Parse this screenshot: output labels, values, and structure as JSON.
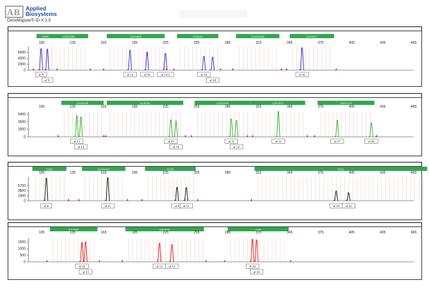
{
  "header": {
    "brand_line1": "Applied",
    "brand_line2": "Biosystems",
    "app_title": "GeneMapper® ID-X 1.5",
    "logo_icon": "ab-logo-icon"
  },
  "colors": {
    "blue": "#2b2ec4",
    "green": "#2db52d",
    "black": "#111111",
    "red": "#e01a1a",
    "marker_fill": "#2eaa4a",
    "bin_line": "#e9a4a4",
    "allele_box": "#5a5a5a"
  },
  "panels": [
    {
      "dye": "blue",
      "ymax": 8000,
      "yticks": [
        0,
        2000,
        4000,
        6000
      ],
      "x_ticks": [
        "105",
        "135",
        "165",
        "195",
        "225",
        "255",
        "285",
        "315",
        "345",
        "375",
        "405",
        "435",
        "465"
      ],
      "markers": [
        {
          "name": "AMEL",
          "start": 100,
          "end": 118
        },
        {
          "name": "D3S1358",
          "start": 112,
          "end": 150
        },
        {
          "name": "D1S1656",
          "start": 168,
          "end": 224
        },
        {
          "name": "D2S441",
          "start": 236,
          "end": 276
        },
        {
          "name": "D10S1248",
          "start": 293,
          "end": 335
        },
        {
          "name": "D13S317",
          "start": 345,
          "end": 388
        }
      ],
      "peaks": [
        {
          "x": 104.5,
          "h": 7200
        },
        {
          "x": 110.5,
          "h": 7000
        },
        {
          "x": 190.5,
          "h": 6600
        },
        {
          "x": 207.0,
          "h": 6000
        },
        {
          "x": 224.8,
          "h": 5600
        },
        {
          "x": 262.0,
          "h": 4600
        },
        {
          "x": 270.5,
          "h": 4300
        },
        {
          "x": 357.0,
          "h": 7500
        }
      ],
      "alleles": [
        {
          "label": "X",
          "x": 104.5,
          "row": 0
        },
        {
          "label": "Y",
          "x": 110.5,
          "row": 1
        },
        {
          "label": "12",
          "x": 190.5,
          "row": 0
        },
        {
          "label": "10",
          "x": 207.0,
          "row": 0
        },
        {
          "label": "13.2",
          "x": 224.8,
          "row": 0
        },
        {
          "label": "16",
          "x": 262.0,
          "row": 0
        },
        {
          "label": "18",
          "x": 270.5,
          "row": 1
        },
        {
          "label": "16",
          "x": 357.0,
          "row": 0
        }
      ]
    },
    {
      "dye": "green",
      "ymax": 6000,
      "yticks": [
        0,
        1800,
        3600,
        5400
      ],
      "x_ticks": [
        "105",
        "135",
        "165",
        "195",
        "225",
        "255",
        "285",
        "315",
        "345",
        "375",
        "405",
        "435",
        "465"
      ],
      "markers": [
        {
          "name": "D16S539",
          "start": 124,
          "end": 165
        },
        {
          "name": "D18S51",
          "start": 168,
          "end": 242
        },
        {
          "name": "D2S1338",
          "start": 253,
          "end": 307
        },
        {
          "name": "CSF1PO",
          "start": 307,
          "end": 360
        },
        {
          "name": "D8S1179",
          "start": 372,
          "end": 427
        }
      ],
      "peaks": [
        {
          "x": 139.0,
          "h": 5000
        },
        {
          "x": 143.0,
          "h": 4700
        },
        {
          "x": 230.0,
          "h": 4000
        },
        {
          "x": 235.0,
          "h": 3700
        },
        {
          "x": 288.5,
          "h": 4200
        },
        {
          "x": 293.5,
          "h": 3900
        },
        {
          "x": 334.0,
          "h": 6000
        },
        {
          "x": 391.0,
          "h": 3900
        },
        {
          "x": 424.0,
          "h": 3300
        }
      ],
      "alleles": [
        {
          "label": "13",
          "x": 139.0,
          "row": 0
        },
        {
          "label": "14",
          "x": 143.0,
          "row": 1
        },
        {
          "label": "15",
          "x": 230.0,
          "row": 0
        },
        {
          "label": "16",
          "x": 235.0,
          "row": 1
        },
        {
          "label": "11",
          "x": 288.5,
          "row": 0
        },
        {
          "label": "12",
          "x": 293.5,
          "row": 1
        },
        {
          "label": "11",
          "x": 334.0,
          "row": 0
        },
        {
          "label": "17",
          "x": 391.0,
          "row": 0
        },
        {
          "label": "25",
          "x": 424.0,
          "row": 0
        }
      ]
    },
    {
      "dye": "black",
      "ymax": 9000,
      "yticks": [
        0,
        1900,
        3800,
        5700
      ],
      "x_ticks": [
        "105",
        "135",
        "165",
        "195",
        "225",
        "255",
        "285",
        "315",
        "345",
        "375",
        "405",
        "435",
        "465"
      ],
      "markers": [
        {
          "name": "TH01",
          "start": 96,
          "end": 129
        },
        {
          "name": "D19S433",
          "start": 144,
          "end": 186
        },
        {
          "name": "D22S",
          "start": 205,
          "end": 254
        },
        {
          "name": "FGA",
          "start": 311,
          "end": 478
        }
      ],
      "peaks": [
        {
          "x": 109.5,
          "h": 8500
        },
        {
          "x": 169.0,
          "h": 8700
        },
        {
          "x": 236.0,
          "h": 5000
        },
        {
          "x": 245.0,
          "h": 4900
        },
        {
          "x": 390.0,
          "h": 3600
        },
        {
          "x": 402.0,
          "h": 3000
        }
      ],
      "alleles": [
        {
          "label": "6",
          "x": 109.5,
          "row": 0
        },
        {
          "label": "11",
          "x": 169.0,
          "row": 0
        },
        {
          "label": "8",
          "x": 236.0,
          "row": 0
        },
        {
          "label": "11",
          "x": 245.0,
          "row": 0
        },
        {
          "label": "19",
          "x": 390.0,
          "row": 0
        },
        {
          "label": "22",
          "x": 402.0,
          "row": 0
        }
      ]
    },
    {
      "dye": "red",
      "ymax": 1800,
      "yticks": [
        0,
        500,
        1000,
        1500
      ],
      "x_ticks": [
        "105",
        "135",
        "165",
        "195",
        "225",
        "255",
        "285",
        "315",
        "345",
        "375",
        "405",
        "435",
        "465"
      ],
      "markers": [
        {
          "name": "DYS391",
          "start": 113,
          "end": 159
        },
        {
          "name": "D5S818",
          "start": 186,
          "end": 262
        },
        {
          "name": "vWA",
          "start": 285,
          "end": 344
        }
      ],
      "peaks": [
        {
          "x": 144.0,
          "h": 1450
        },
        {
          "x": 147.5,
          "h": 1500
        },
        {
          "x": 219.0,
          "h": 1400
        },
        {
          "x": 231.0,
          "h": 1300
        },
        {
          "x": 309.0,
          "h": 1700
        },
        {
          "x": 313.0,
          "h": 1650
        }
      ],
      "alleles": [
        {
          "label": "12",
          "x": 144.0,
          "row": 0
        },
        {
          "label": "13",
          "x": 147.5,
          "row": 1
        },
        {
          "label": "12",
          "x": 219.0,
          "row": 0
        },
        {
          "label": "15",
          "x": 231.0,
          "row": 0
        },
        {
          "label": "22",
          "x": 309.0,
          "row": 0
        },
        {
          "label": "23",
          "x": 313.0,
          "row": 1
        }
      ]
    }
  ]
}
